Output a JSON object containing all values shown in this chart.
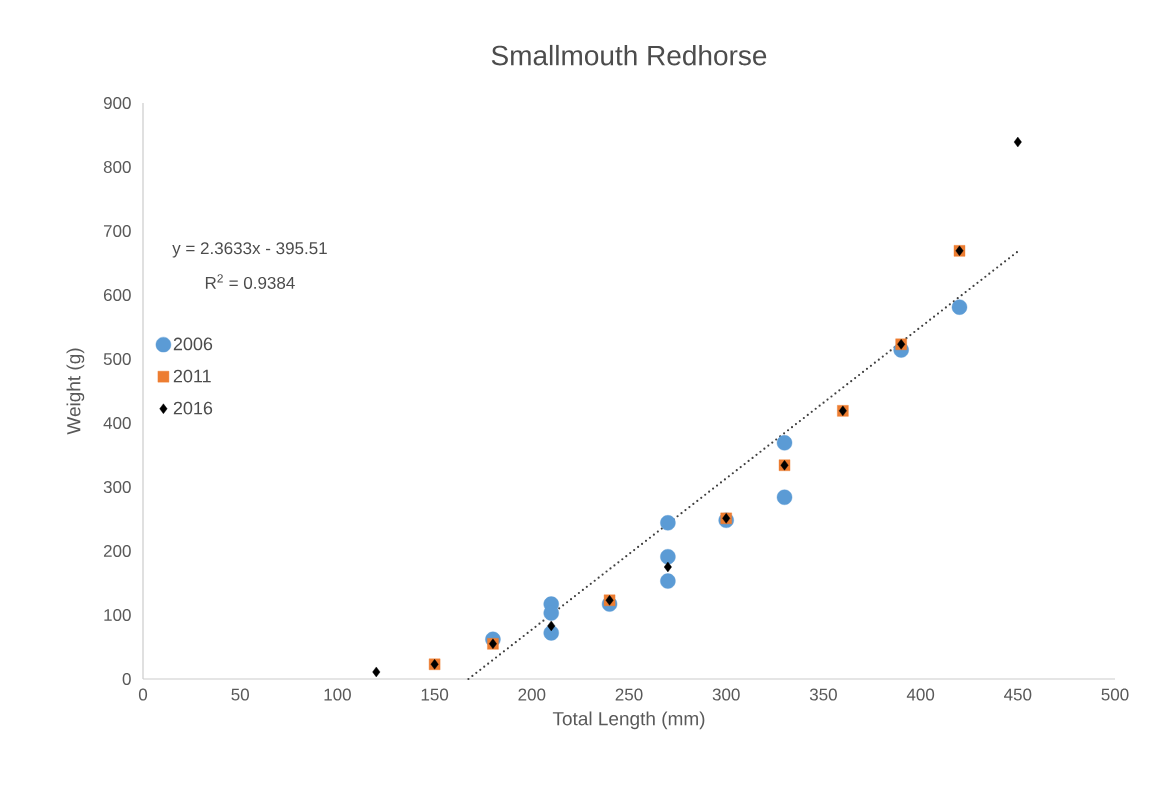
{
  "chart_data": {
    "type": "scatter",
    "title": "Smallmouth Redhorse",
    "xlabel": "Total Length (mm)",
    "ylabel": "Weight (g)",
    "annotations": [
      "y = 2.3633x - 395.51",
      "R$^{2}$ = 0.9384"
    ],
    "xlim": [
      0,
      500
    ],
    "xticks": [
      0,
      50,
      100,
      150,
      200,
      250,
      300,
      350,
      400,
      450,
      500
    ],
    "ylim": [
      0,
      900
    ],
    "yticks": [
      0,
      100,
      200,
      300,
      400,
      500,
      600,
      700,
      800,
      900
    ],
    "grid": false,
    "legend": "left",
    "series": [
      {
        "name": "2006",
        "color": "#5b9bd5",
        "marker": "circle",
        "x": [
          180,
          210,
          210,
          210,
          240,
          270,
          270,
          270,
          300,
          330,
          330,
          390,
          420
        ],
        "values": [
          62,
          117,
          103,
          72,
          117,
          244,
          191,
          153,
          248,
          369,
          284,
          514,
          581
        ]
      },
      {
        "name": "2011",
        "color": "#ed7d31",
        "marker": "square",
        "x": [
          150,
          180,
          240,
          300,
          330,
          360,
          390,
          420
        ],
        "values": [
          23,
          55,
          123,
          251,
          334,
          419,
          523,
          669
        ]
      },
      {
        "name": "2016",
        "color": "#000000",
        "marker": "diamond",
        "x": [
          120,
          150,
          180,
          210,
          240,
          270,
          300,
          330,
          360,
          390,
          420,
          450
        ],
        "values": [
          11,
          23,
          55,
          83,
          123,
          175,
          251,
          334,
          419,
          523,
          669,
          839
        ]
      },
      {
        "type": "line",
        "color": "#404040",
        "line_style": "dotted",
        "marker": "none",
        "x": [
          167.4,
          450
        ],
        "values": [
          0,
          668
        ]
      }
    ]
  }
}
